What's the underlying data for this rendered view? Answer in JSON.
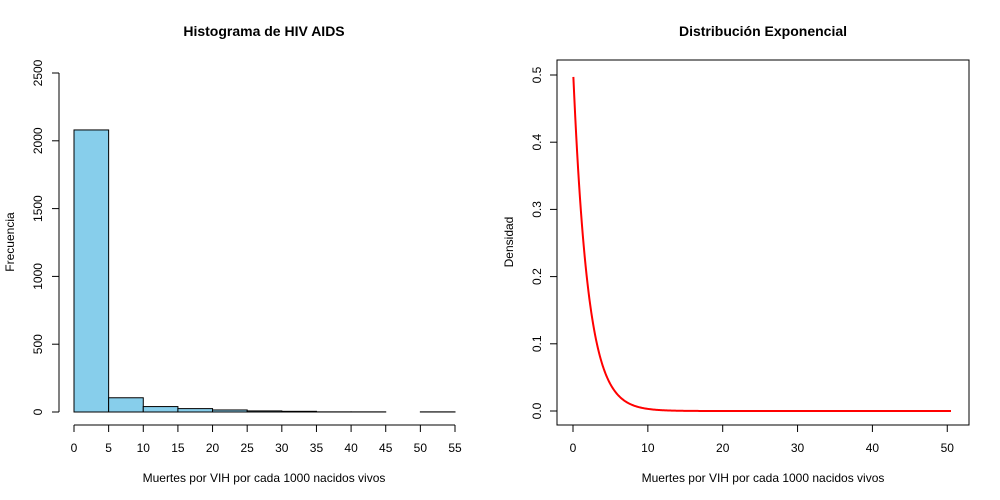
{
  "chart_data": [
    {
      "type": "bar",
      "title": "Histograma de HIV AIDS",
      "xlabel": "Muertes por VIH por cada 1000 nacidos vivos",
      "ylabel": "Frecuencia",
      "bins": [
        [
          0,
          5
        ],
        [
          5,
          10
        ],
        [
          10,
          15
        ],
        [
          15,
          20
        ],
        [
          20,
          25
        ],
        [
          25,
          30
        ],
        [
          30,
          35
        ],
        [
          35,
          40
        ],
        [
          40,
          45
        ],
        [
          45,
          50
        ],
        [
          50,
          55
        ]
      ],
      "values": [
        2080,
        105,
        40,
        25,
        15,
        8,
        5,
        1,
        1,
        0,
        1
      ],
      "xlim": [
        0,
        55
      ],
      "ylim": [
        0,
        2500
      ],
      "xticks": [
        "0",
        "5",
        "10",
        "15",
        "20",
        "25",
        "30",
        "35",
        "40",
        "45",
        "50",
        "55"
      ],
      "yticks": [
        "0",
        "500",
        "1000",
        "1500",
        "2000",
        "2500"
      ],
      "bar_color": "#87CEEB",
      "grid": false
    },
    {
      "type": "line",
      "title": "Distribución Exponencial",
      "xlabel": "Muertes por VIH por cada 1000 nacidos vivos",
      "ylabel": "Densidad",
      "rate": 0.51,
      "x_range": [
        0.05,
        50.5
      ],
      "xlim": [
        0,
        50.5
      ],
      "ylim": [
        0,
        0.5
      ],
      "xticks": [
        "0",
        "10",
        "20",
        "30",
        "40",
        "50"
      ],
      "yticks": [
        "0.0",
        "0.1",
        "0.2",
        "0.3",
        "0.4",
        "0.5"
      ],
      "line_color": "#FF0000",
      "grid": false
    }
  ]
}
